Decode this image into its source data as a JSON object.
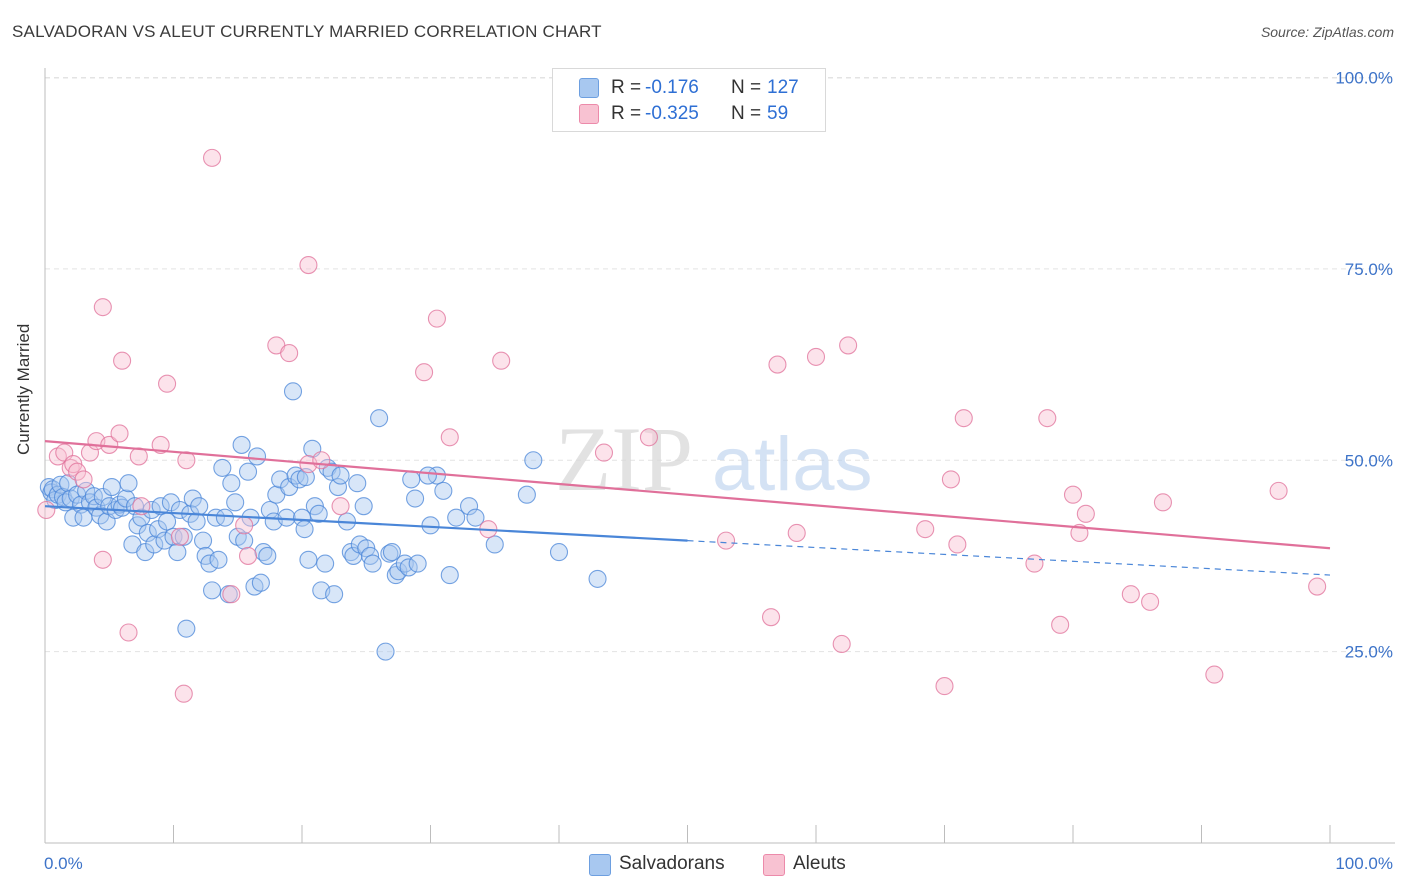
{
  "title": "SALVADORAN VS ALEUT CURRENTLY MARRIED CORRELATION CHART",
  "source": "Source: ZipAtlas.com",
  "watermark": {
    "zip": "ZIP",
    "atlas": "atlas"
  },
  "legend": {
    "r_label": "R =",
    "n_label": "N =",
    "rows": [
      {
        "r": "-0.176",
        "n": "127",
        "color": "#a8c8f0",
        "border": "#6d9fe0"
      },
      {
        "r": "-0.325",
        "n": "59",
        "color": "#f8c2d2",
        "border": "#ec8aaa"
      }
    ]
  },
  "chart_data": {
    "type": "scatter",
    "title": "SALVADORAN VS ALEUT CURRENTLY MARRIED CORRELATION CHART",
    "xlabel": "",
    "ylabel": "Currently Married",
    "xlim": [
      0,
      100
    ],
    "ylim": [
      0,
      105
    ],
    "x_tick_labels": [
      "0.0%",
      "100.0%"
    ],
    "y_ticks": [
      25,
      50,
      75,
      100
    ],
    "y_tick_labels": [
      "25.0%",
      "50.0%",
      "75.0%",
      "100.0%"
    ],
    "grid": true,
    "legend_position": "top-center",
    "series": [
      {
        "name": "Salvadorans",
        "color": "#4a86d8",
        "fill": "#a8c8f0",
        "trend": {
          "x": [
            0,
            50
          ],
          "y": [
            44.0,
            39.5
          ],
          "dashed_to": [
            100,
            35.0
          ]
        },
        "points": [
          [
            0.3,
            46.5
          ],
          [
            0.5,
            45.8
          ],
          [
            0.6,
            46.2
          ],
          [
            0.8,
            44.8
          ],
          [
            1.0,
            45.5
          ],
          [
            1.2,
            46.8
          ],
          [
            1.4,
            45.2
          ],
          [
            1.6,
            44.5
          ],
          [
            1.8,
            47.0
          ],
          [
            2.0,
            45.0
          ],
          [
            2.2,
            42.5
          ],
          [
            2.5,
            45.5
          ],
          [
            2.8,
            44.2
          ],
          [
            3.0,
            42.5
          ],
          [
            3.2,
            46.0
          ],
          [
            3.5,
            44.5
          ],
          [
            3.8,
            45.3
          ],
          [
            4.0,
            43.8
          ],
          [
            4.3,
            42.8
          ],
          [
            4.5,
            45.2
          ],
          [
            4.8,
            42.0
          ],
          [
            5.0,
            44.0
          ],
          [
            5.2,
            46.5
          ],
          [
            5.5,
            43.5
          ],
          [
            5.8,
            44.2
          ],
          [
            6.0,
            43.8
          ],
          [
            6.3,
            45.0
          ],
          [
            6.5,
            47.0
          ],
          [
            6.8,
            39.0
          ],
          [
            7.0,
            44.0
          ],
          [
            7.2,
            41.5
          ],
          [
            7.5,
            42.5
          ],
          [
            7.8,
            38.0
          ],
          [
            8.0,
            40.5
          ],
          [
            8.3,
            43.5
          ],
          [
            8.5,
            39.0
          ],
          [
            8.8,
            41.0
          ],
          [
            9.0,
            44.0
          ],
          [
            9.3,
            39.5
          ],
          [
            9.5,
            42.0
          ],
          [
            9.8,
            44.5
          ],
          [
            10.0,
            40.0
          ],
          [
            10.3,
            38.0
          ],
          [
            10.5,
            43.5
          ],
          [
            10.8,
            40.0
          ],
          [
            11.0,
            28.0
          ],
          [
            11.3,
            43.0
          ],
          [
            11.5,
            45.0
          ],
          [
            11.8,
            42.0
          ],
          [
            12.0,
            44.0
          ],
          [
            12.3,
            39.5
          ],
          [
            12.5,
            37.5
          ],
          [
            12.8,
            36.5
          ],
          [
            13.0,
            33.0
          ],
          [
            13.3,
            42.5
          ],
          [
            13.5,
            37.0
          ],
          [
            13.8,
            49.0
          ],
          [
            14.0,
            42.5
          ],
          [
            14.3,
            32.5
          ],
          [
            14.5,
            47.0
          ],
          [
            14.8,
            44.5
          ],
          [
            15.0,
            40.0
          ],
          [
            15.3,
            52.0
          ],
          [
            15.5,
            39.5
          ],
          [
            15.8,
            48.5
          ],
          [
            16.0,
            42.5
          ],
          [
            16.3,
            33.5
          ],
          [
            16.5,
            50.5
          ],
          [
            16.8,
            34.0
          ],
          [
            17.0,
            38.0
          ],
          [
            17.3,
            37.5
          ],
          [
            17.5,
            43.5
          ],
          [
            17.8,
            42.0
          ],
          [
            18.0,
            45.5
          ],
          [
            18.3,
            47.5
          ],
          [
            18.8,
            42.5
          ],
          [
            19.0,
            46.5
          ],
          [
            19.3,
            59.0
          ],
          [
            19.5,
            48.0
          ],
          [
            19.8,
            47.5
          ],
          [
            20.0,
            42.5
          ],
          [
            20.3,
            47.8
          ],
          [
            20.5,
            37.0
          ],
          [
            20.8,
            51.5
          ],
          [
            21.0,
            44.0
          ],
          [
            21.3,
            43.0
          ],
          [
            21.5,
            33.0
          ],
          [
            21.8,
            36.5
          ],
          [
            22.0,
            49.0
          ],
          [
            22.3,
            48.5
          ],
          [
            22.5,
            32.5
          ],
          [
            22.8,
            46.5
          ],
          [
            23.5,
            42.0
          ],
          [
            23.8,
            38.0
          ],
          [
            24.0,
            37.5
          ],
          [
            24.3,
            47.0
          ],
          [
            24.5,
            39.0
          ],
          [
            24.8,
            44.0
          ],
          [
            25.0,
            38.5
          ],
          [
            25.3,
            37.5
          ],
          [
            25.5,
            36.5
          ],
          [
            26.0,
            55.5
          ],
          [
            26.5,
            25.0
          ],
          [
            26.8,
            37.8
          ],
          [
            27.0,
            38.0
          ],
          [
            27.3,
            35.0
          ],
          [
            27.5,
            35.5
          ],
          [
            28.0,
            36.5
          ],
          [
            28.3,
            36.0
          ],
          [
            28.5,
            47.5
          ],
          [
            28.8,
            45.0
          ],
          [
            29.0,
            36.5
          ],
          [
            30.0,
            41.5
          ],
          [
            30.5,
            48.0
          ],
          [
            31.0,
            46.0
          ],
          [
            31.5,
            35.0
          ],
          [
            32.0,
            42.5
          ],
          [
            33.0,
            44.0
          ],
          [
            33.5,
            42.5
          ],
          [
            35.0,
            39.0
          ],
          [
            37.5,
            45.5
          ],
          [
            38.0,
            50.0
          ],
          [
            40.0,
            38.0
          ],
          [
            43.0,
            34.5
          ],
          [
            29.8,
            48.0
          ],
          [
            20.2,
            41.0
          ],
          [
            23.0,
            48.0
          ]
        ]
      },
      {
        "name": "Aleuts",
        "color": "#e0709a",
        "fill": "#f8c2d2",
        "trend": {
          "x": [
            0,
            100
          ],
          "y": [
            52.5,
            38.5
          ]
        },
        "points": [
          [
            0.1,
            43.5
          ],
          [
            1.0,
            50.5
          ],
          [
            1.5,
            51.0
          ],
          [
            2.0,
            49.0
          ],
          [
            2.2,
            49.5
          ],
          [
            2.5,
            48.5
          ],
          [
            3.0,
            47.5
          ],
          [
            3.5,
            51.0
          ],
          [
            4.0,
            52.5
          ],
          [
            4.5,
            37.0
          ],
          [
            4.5,
            70.0
          ],
          [
            5.0,
            52.0
          ],
          [
            5.8,
            53.5
          ],
          [
            6.0,
            63.0
          ],
          [
            6.5,
            27.5
          ],
          [
            7.3,
            50.5
          ],
          [
            7.5,
            44.0
          ],
          [
            9.0,
            52.0
          ],
          [
            9.5,
            60.0
          ],
          [
            10.5,
            40.0
          ],
          [
            10.8,
            19.5
          ],
          [
            11.0,
            50.0
          ],
          [
            13.0,
            89.5
          ],
          [
            14.5,
            32.5
          ],
          [
            15.5,
            41.5
          ],
          [
            15.8,
            37.5
          ],
          [
            18.0,
            65.0
          ],
          [
            19.0,
            64.0
          ],
          [
            20.5,
            49.5
          ],
          [
            20.5,
            75.5
          ],
          [
            21.5,
            50.0
          ],
          [
            23.0,
            44.0
          ],
          [
            29.5,
            61.5
          ],
          [
            30.5,
            68.5
          ],
          [
            31.5,
            53.0
          ],
          [
            34.5,
            41.0
          ],
          [
            35.5,
            63.0
          ],
          [
            43.5,
            51.0
          ],
          [
            47.0,
            53.0
          ],
          [
            53.0,
            39.5
          ],
          [
            56.5,
            29.5
          ],
          [
            57.0,
            62.5
          ],
          [
            58.5,
            40.5
          ],
          [
            60.0,
            63.5
          ],
          [
            62.0,
            26.0
          ],
          [
            62.5,
            65.0
          ],
          [
            68.5,
            41.0
          ],
          [
            70.0,
            20.5
          ],
          [
            70.5,
            47.5
          ],
          [
            71.0,
            39.0
          ],
          [
            71.5,
            55.5
          ],
          [
            77.0,
            36.5
          ],
          [
            78.0,
            55.5
          ],
          [
            79.0,
            28.5
          ],
          [
            80.0,
            45.5
          ],
          [
            80.5,
            40.5
          ],
          [
            81.0,
            43.0
          ],
          [
            84.5,
            32.5
          ],
          [
            86.0,
            31.5
          ]
        ],
        "extra_points": [
          [
            87.0,
            44.5
          ],
          [
            91.0,
            22.0
          ],
          [
            96.0,
            46.0
          ],
          [
            99.0,
            33.5
          ]
        ]
      }
    ]
  }
}
